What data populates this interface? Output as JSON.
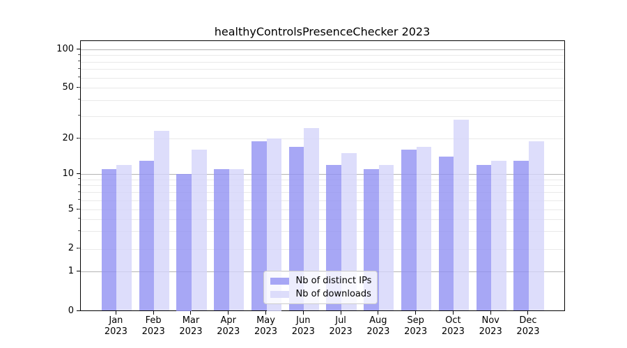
{
  "window": {
    "background": "#ffffff"
  },
  "chart_data": {
    "type": "bar",
    "title": "healthyControlsPresenceChecker 2023",
    "categories": [
      "Jan 2023",
      "Feb 2023",
      "Mar 2023",
      "Apr 2023",
      "May 2023",
      "Jun 2023",
      "Jul 2023",
      "Aug 2023",
      "Sep 2023",
      "Oct 2023",
      "Nov 2023",
      "Dec 2023"
    ],
    "months": [
      "Jan",
      "Feb",
      "Mar",
      "Apr",
      "May",
      "Jun",
      "Jul",
      "Aug",
      "Sep",
      "Oct",
      "Nov",
      "Dec"
    ],
    "year": "2023",
    "series": [
      {
        "name": "Nb of distinct IPs",
        "color": "rgba(145,145,243,0.8)",
        "values": [
          11,
          13,
          10,
          11,
          19,
          17,
          12,
          11,
          16,
          14,
          12,
          13
        ]
      },
      {
        "name": "Nb of downloads",
        "color": "rgba(213,213,250,0.8)",
        "values": [
          12,
          23,
          16,
          11,
          20,
          24,
          15,
          12,
          17,
          28,
          13,
          19
        ]
      }
    ],
    "xlabel": "",
    "ylabel": "",
    "yscale": "symlog",
    "yticks": [
      0,
      1,
      2,
      5,
      10,
      20,
      50,
      100
    ],
    "ylim": [
      0,
      112
    ],
    "grid": true,
    "legend_position": "lower-center-inside"
  },
  "style": {
    "grid_minor_color": "#e9e9e9",
    "grid_major_color": "#b3b3b3",
    "spine_color": "#000000",
    "text_color": "#000000"
  }
}
